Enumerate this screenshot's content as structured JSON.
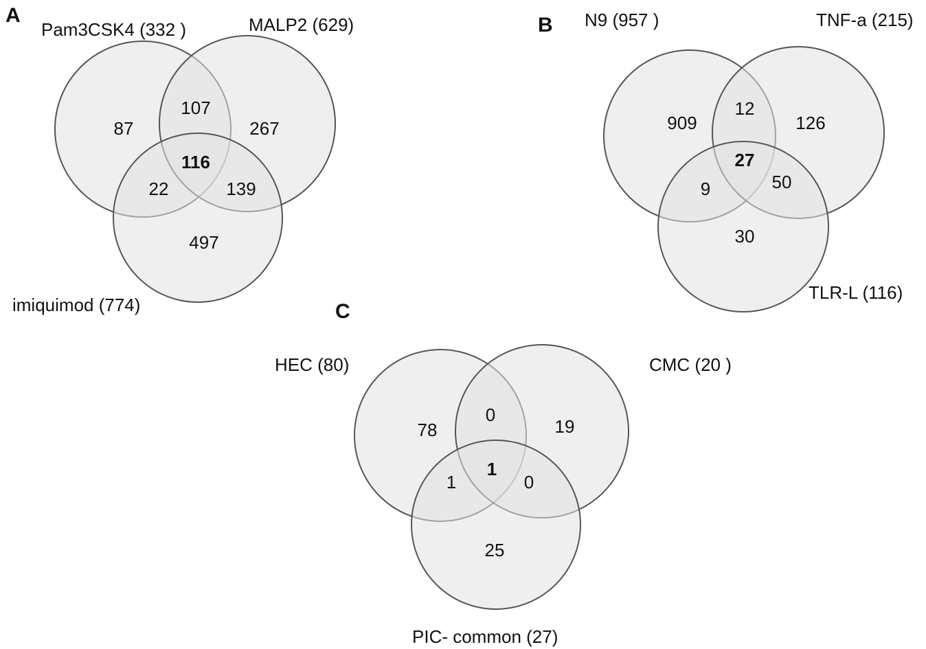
{
  "panels": [
    {
      "letter": "A",
      "sets": [
        {
          "label": "Pam3CSK4 (332 )"
        },
        {
          "label": "MALP2 (629)"
        },
        {
          "label": "imiquimod (774)"
        }
      ],
      "regions": {
        "only_1": "87",
        "only_2": "267",
        "only_3": "497",
        "1_2": "107",
        "1_3": "22",
        "2_3": "139",
        "all": "116"
      }
    },
    {
      "letter": "B",
      "sets": [
        {
          "label": "N9 (957 )"
        },
        {
          "label": "TNF-a (215)"
        },
        {
          "label": "TLR-L (116)"
        }
      ],
      "regions": {
        "only_1": "909",
        "only_2": "126",
        "only_3": "30",
        "1_2": "12",
        "1_3": "9",
        "2_3": "50",
        "all": "27"
      }
    },
    {
      "letter": "C",
      "sets": [
        {
          "label": "HEC (80)"
        },
        {
          "label": "CMC (20 )"
        },
        {
          "label": "PIC- common (27)"
        }
      ],
      "regions": {
        "only_1": "78",
        "only_2": "19",
        "only_3": "25",
        "1_2": "0",
        "1_3": "1",
        "2_3": "0",
        "all": "1"
      }
    }
  ],
  "colors": {
    "circle_fill": "#e2e2e2",
    "circle_stroke": "#555555",
    "text": "#111111"
  }
}
